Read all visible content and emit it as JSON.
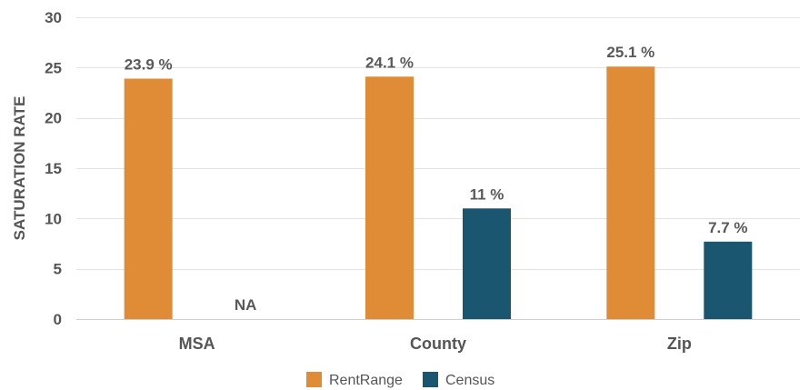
{
  "chart_data": {
    "type": "bar",
    "categories": [
      "MSA",
      "County",
      "Zip"
    ],
    "series": [
      {
        "name": "RentRange",
        "color": "#E08B35",
        "values": [
          23.9,
          24.1,
          25.1
        ],
        "labels": [
          "23.9 %",
          "24.1 %",
          "25.1 %"
        ]
      },
      {
        "name": "Census",
        "color": "#1B5670",
        "values": [
          null,
          11,
          7.7
        ],
        "labels": [
          "NA",
          "11 %",
          "7.7 %"
        ]
      }
    ],
    "ylabel": "SATURATION RATE",
    "xlabel": "",
    "ylim": [
      0,
      30
    ],
    "yticks": [
      0,
      5,
      10,
      15,
      20,
      25,
      30
    ],
    "grid": true,
    "legend_position": "bottom"
  }
}
